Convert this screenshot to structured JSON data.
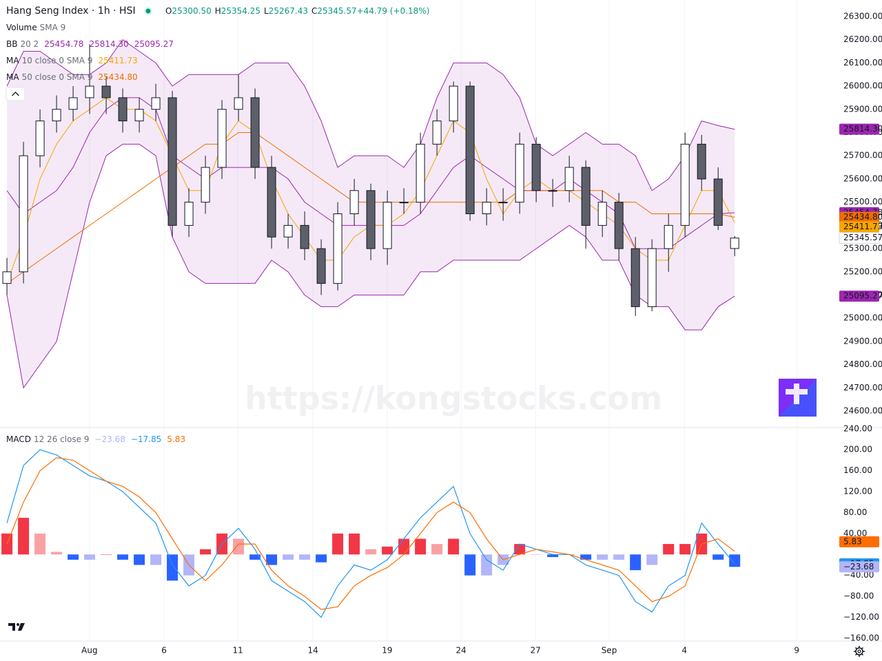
{
  "chart_data": [
    {
      "type": "candlestick",
      "title": "Hang Seng Index · 1h · HSI",
      "ohlc_legend": [
        {
          "label": "O",
          "value": "25300.50"
        },
        {
          "label": "H",
          "value": "25354.25"
        },
        {
          "label": "L",
          "value": "25267.43"
        },
        {
          "label": "C",
          "value": "25345.57"
        },
        {
          "label": "",
          "value": "+44.79 (+0.18%)"
        }
      ],
      "indicators": [
        {
          "name": "Volume",
          "params": "SMA 9",
          "values": []
        },
        {
          "name": "BB",
          "params": "20 2",
          "values": [
            "25454.78",
            "25814.30",
            "25095.27"
          ]
        },
        {
          "name": "MA",
          "params": "10 close 0 SMA 9",
          "values": [
            "25411.73"
          ]
        },
        {
          "name": "MA",
          "params": "50 close 0 SMA 9",
          "values": [
            "25434.80"
          ]
        }
      ],
      "watermark": "https://kongstocks.com",
      "x": [
        0,
        1,
        2,
        3,
        4,
        5,
        6,
        7,
        8,
        9,
        10,
        11,
        12,
        13,
        14,
        15,
        16,
        17,
        18,
        19,
        20,
        21,
        22,
        23,
        24,
        25,
        26,
        27,
        28,
        29,
        30,
        31,
        32,
        33,
        34,
        35,
        36,
        37,
        38,
        39,
        40,
        41,
        42,
        43,
        44
      ],
      "xlim": [
        -0.42,
        50.2
      ],
      "xticks": [
        {
          "value": 4.99,
          "label": "Aug"
        },
        {
          "value": 9.5,
          "label": "6"
        },
        {
          "value": 13.96,
          "label": "11"
        },
        {
          "value": 18.5,
          "label": "14"
        },
        {
          "value": 22.99,
          "label": "19"
        },
        {
          "value": 27.46,
          "label": "24"
        },
        {
          "value": 31.96,
          "label": "27"
        },
        {
          "value": 36.41,
          "label": "Sep"
        },
        {
          "value": 40.96,
          "label": "4"
        },
        {
          "value": 47.75,
          "label": "9"
        }
      ],
      "xgrid": true,
      "ylim": [
        24532,
        26371
      ],
      "yticks": [
        {
          "value": 24600,
          "label": "24600.00"
        },
        {
          "value": 24700,
          "label": "24700.00"
        },
        {
          "value": 24800,
          "label": "24800.00"
        },
        {
          "value": 24900,
          "label": "24900.00"
        },
        {
          "value": 25000,
          "label": "25000.00"
        },
        {
          "value": 25100,
          "label": "25100.00"
        },
        {
          "value": 25200,
          "label": "25200.00"
        },
        {
          "value": 25300,
          "label": "25300.00"
        },
        {
          "value": 25400,
          "label": "25400.00"
        },
        {
          "value": 25500,
          "label": "25500.00"
        },
        {
          "value": 25600,
          "label": "25600.00"
        },
        {
          "value": 25700,
          "label": "25700.00"
        },
        {
          "value": 25800,
          "label": "25800.00"
        },
        {
          "value": 25900,
          "label": "25900.00"
        },
        {
          "value": 26000,
          "label": "26000.00"
        },
        {
          "value": 26100,
          "label": "26100.00"
        },
        {
          "value": 26200,
          "label": "26200.00"
        },
        {
          "value": 26300,
          "label": "26300.00"
        }
      ],
      "ygrid": false,
      "up_color": "#ffffff",
      "down_color": "#5d606b",
      "wick_color": "#131722",
      "open": [
        25150,
        25200,
        25700,
        25850,
        25900,
        25950,
        26000,
        25950,
        25850,
        25900,
        25950,
        25400,
        25500,
        25650,
        25900,
        25950,
        25650,
        25350,
        25400,
        25300,
        25150,
        25450,
        25550,
        25300,
        25500,
        25500,
        25750,
        25850,
        26000,
        25450,
        25500,
        25500,
        25750,
        25550,
        25550,
        25650,
        25400,
        25500,
        25300,
        25050,
        25300,
        25400,
        25750,
        25600,
        25300.5
      ],
      "high": [
        25260,
        25760,
        25900,
        25960,
        26000,
        26180,
        26040,
        25990,
        25950,
        26010,
        25980,
        25560,
        25700,
        25940,
        26050,
        25990,
        25700,
        25450,
        25460,
        25340,
        25500,
        25600,
        25580,
        25550,
        25560,
        25800,
        25900,
        26020,
        26020,
        25560,
        25560,
        25800,
        25780,
        25600,
        25700,
        25680,
        25550,
        25540,
        25350,
        25340,
        25450,
        25800,
        25790,
        25650,
        25354.25
      ],
      "low": [
        25100,
        25150,
        25650,
        25800,
        25850,
        25880,
        25880,
        25800,
        25800,
        25850,
        25350,
        25350,
        25450,
        25600,
        25850,
        25600,
        25300,
        25300,
        25250,
        25100,
        25120,
        25400,
        25250,
        25230,
        25450,
        25450,
        25700,
        25800,
        25420,
        25400,
        25420,
        25450,
        25500,
        25480,
        25500,
        25300,
        25350,
        25250,
        25010,
        25030,
        25200,
        25350,
        25550,
        25380,
        25267.43
      ],
      "close": [
        25200,
        25700,
        25850,
        25900,
        25950,
        26000,
        25950,
        25850,
        25900,
        25950,
        25400,
        25500,
        25650,
        25900,
        25950,
        25650,
        25350,
        25400,
        25300,
        25150,
        25450,
        25550,
        25300,
        25500,
        25500,
        25750,
        25850,
        26000,
        25450,
        25500,
        25500,
        25750,
        25550,
        25550,
        25650,
        25400,
        25500,
        25300,
        25050,
        25300,
        25400,
        25750,
        25600,
        25400,
        25345.57
      ],
      "band_fill": "rgba(156,39,176,0.1)",
      "series": [
        {
          "color": "#9c27b0",
          "values": [
            26000,
            26150,
            26150,
            26100,
            26050,
            26050,
            26100,
            26200,
            26150,
            26100,
            26000,
            26050,
            26050,
            26050,
            26050,
            26100,
            26100,
            26100,
            26000,
            25850,
            25650,
            25700,
            25700,
            25700,
            25650,
            25750,
            25950,
            26100,
            26100,
            26100,
            26050,
            25950,
            25750,
            25700,
            25750,
            25800,
            25750,
            25750,
            25700,
            25550,
            25600,
            25700,
            25850,
            25830,
            25814.3
          ]
        },
        {
          "color": "#9c27b0",
          "values": [
            25550,
            25450,
            25500,
            25550,
            25650,
            25800,
            25900,
            25950,
            25950,
            25900,
            25700,
            25650,
            25600,
            25650,
            25650,
            25650,
            25650,
            25600,
            25500,
            25450,
            25400,
            25400,
            25400,
            25400,
            25400,
            25450,
            25550,
            25650,
            25700,
            25650,
            25600,
            25550,
            25550,
            25550,
            25600,
            25550,
            25500,
            25450,
            25300,
            25300,
            25300,
            25350,
            25400,
            25450,
            25454.78
          ]
        },
        {
          "color": "#9c27b0",
          "values": [
            25100,
            24700,
            24800,
            24900,
            25200,
            25500,
            25700,
            25750,
            25750,
            25700,
            25350,
            25200,
            25150,
            25150,
            25150,
            25150,
            25250,
            25200,
            25100,
            25050,
            25050,
            25100,
            25100,
            25100,
            25100,
            25200,
            25200,
            25250,
            25250,
            25250,
            25250,
            25250,
            25300,
            25350,
            25400,
            25350,
            25250,
            25250,
            25100,
            25050,
            25050,
            24950,
            24950,
            25050,
            25095.27
          ]
        },
        {
          "color": "#f7a600",
          "values": [
            25150,
            25350,
            25600,
            25750,
            25850,
            25900,
            25950,
            25900,
            25900,
            25850,
            25700,
            25550,
            25550,
            25750,
            25850,
            25800,
            25600,
            25450,
            25350,
            25250,
            25250,
            25350,
            25400,
            25400,
            25450,
            25550,
            25700,
            25850,
            25800,
            25600,
            25450,
            25550,
            25600,
            25550,
            25550,
            25500,
            25450,
            25400,
            25300,
            25250,
            25250,
            25400,
            25550,
            25550,
            25411.73
          ]
        },
        {
          "color": "#ef6c00",
          "values": [
            25150,
            25200,
            25250,
            25300,
            25350,
            25400,
            25450,
            25500,
            25550,
            25600,
            25650,
            25700,
            25750,
            25750,
            25800,
            25800,
            25750,
            25700,
            25650,
            25600,
            25550,
            25500,
            25500,
            25500,
            25500,
            25500,
            25500,
            25500,
            25500,
            25500,
            25500,
            25550,
            25550,
            25550,
            25550,
            25550,
            25550,
            25500,
            25500,
            25450,
            25450,
            25450,
            25450,
            25450,
            25434.8
          ]
        }
      ]
    },
    {
      "type": "macd",
      "name": "MACD",
      "params": "12 26 close 9",
      "legend_values": [
        "−23.68",
        "−17.85",
        "5.83"
      ],
      "ylim": [
        -164,
        241
      ],
      "yticks": [
        {
          "value": 240,
          "label": "240.00"
        },
        {
          "value": 200,
          "label": "200.00"
        },
        {
          "value": 160,
          "label": "160.00"
        },
        {
          "value": 120,
          "label": "120.00"
        },
        {
          "value": 80,
          "label": "80.00"
        },
        {
          "value": 40,
          "label": "40.00"
        },
        {
          "value": -40,
          "label": "−40.00"
        },
        {
          "value": -80,
          "label": "−80.00"
        },
        {
          "value": -120,
          "label": "−120.00"
        },
        {
          "value": -160,
          "label": "−160.00"
        }
      ],
      "histogram": {
        "colors": {
          "pos_rising": "#f23645",
          "pos_falling": "#faa1a4",
          "neg_falling": "#2962ff",
          "neg_rising": "#b2b5f9"
        },
        "values": [
          40,
          70,
          40,
          5,
          -10,
          -10,
          0,
          -10,
          -20,
          -20,
          -50,
          -40,
          10,
          40,
          30,
          -10,
          -20,
          -10,
          -10,
          -15,
          40,
          40,
          10,
          15,
          30,
          30,
          20,
          30,
          -40,
          -40,
          -20,
          20,
          0,
          -5,
          0,
          -10,
          -10,
          -10,
          -30,
          -20,
          20,
          20,
          40,
          -10,
          -23.68
        ]
      },
      "series": [
        {
          "color": "#2196f3",
          "values": [
            60,
            170,
            200,
            190,
            170,
            150,
            140,
            120,
            90,
            60,
            -20,
            -60,
            -40,
            20,
            50,
            10,
            -50,
            -70,
            -90,
            -120,
            -60,
            -20,
            -30,
            -10,
            30,
            70,
            100,
            130,
            40,
            -10,
            -30,
            20,
            10,
            0,
            0,
            -20,
            -30,
            -40,
            -90,
            -110,
            -60,
            -40,
            60,
            20,
            -17.85
          ]
        },
        {
          "color": "#ff6d00",
          "values": [
            20,
            100,
            160,
            185,
            180,
            160,
            140,
            130,
            110,
            80,
            30,
            -20,
            -50,
            -20,
            20,
            20,
            -30,
            -60,
            -80,
            -105,
            -100,
            -60,
            -40,
            -25,
            0,
            40,
            80,
            100,
            80,
            30,
            -10,
            0,
            10,
            5,
            0,
            -10,
            -20,
            -30,
            -60,
            -90,
            -80,
            -60,
            20,
            30,
            5.83
          ]
        }
      ]
    }
  ]
}
